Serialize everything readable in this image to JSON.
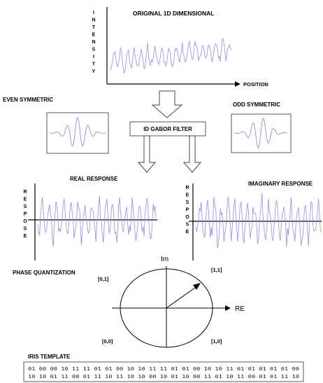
{
  "colors": {
    "signal": "#9090e0",
    "axis": "#000000",
    "box_border": "#555555",
    "arrow": "#444444"
  },
  "labels": {
    "original_title": "ORIGINAL 1D DIMENSIONAL",
    "intensity_axis": "INTENSITY",
    "position_axis": "POSITION",
    "even_symmetric": "EVEN SYMMETRIC",
    "odd_symmetric": "ODD SYMMETRIC",
    "gabor_filter": "ID GABOR FILTER",
    "real_response": "REAL RESPONSE",
    "imaginary_response": "IMAGINARY RESPONSE",
    "response_axis_left": "RESPOSE",
    "response_axis_right": "RESPOSE",
    "phase_quantization": "PHASE QUANTIZATION",
    "im_axis": "Im",
    "re_axis": "RE",
    "quad_01": "[0,1]",
    "quad_11": "[1,1]",
    "quad_00": "[0,0]",
    "quad_10": "[1,0]",
    "iris_template": "IRIS TEMPLATE"
  },
  "iris_template": {
    "row1": "01 00 00 10 11 11 01 01 00 10 10 11 11 01 01 00 10 10 11 01 01 01 01 01 00",
    "row2": "10 10 01 11 00 01 11 10 11 10 10 00 10 01 10 00 11 01 10 11 00 01 01 11 10"
  }
}
